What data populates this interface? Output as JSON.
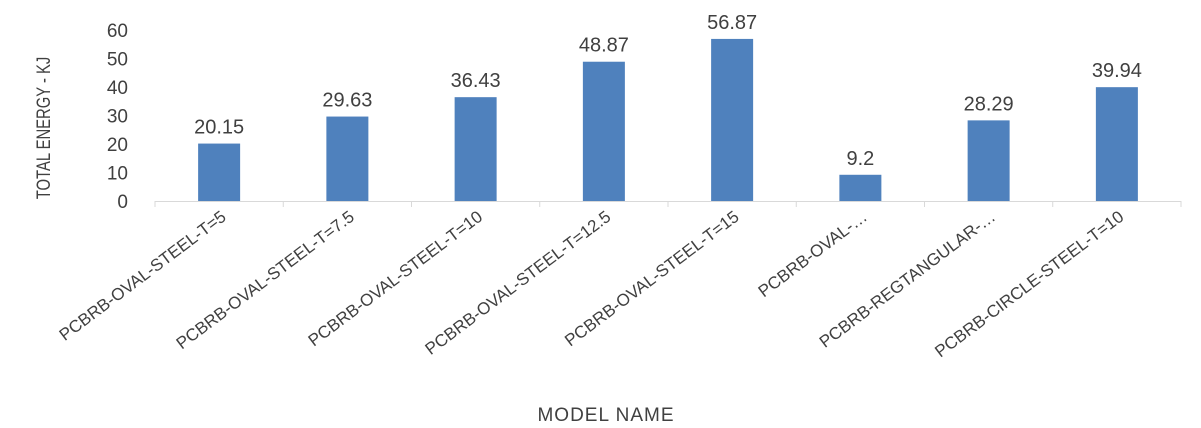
{
  "chart_data": {
    "type": "bar",
    "title": "",
    "xlabel": "MODEL NAME",
    "ylabel": "TOTAL ENERGY - KJ",
    "ylim": [
      0,
      60
    ],
    "yticks": [
      0,
      10,
      20,
      30,
      40,
      50,
      60
    ],
    "grid": false,
    "categories": [
      "PCBRB-OVAL-STEEL-T=5",
      "PCBRB-OVAL-STEEL-T=7.5",
      "PCBRB-OVAL-STEEL-T=10",
      "PCBRB-OVAL-STEEL-T=12.5",
      "PCBRB-OVAL-STEEL-T=15",
      "PCBRB-OVAL-…",
      "PCBRB-REGTANGULAR-…",
      "PCBRB-CIRCLE-STEEL-T=10"
    ],
    "values": [
      20.15,
      29.63,
      36.43,
      48.87,
      56.87,
      9.2,
      28.29,
      39.94
    ],
    "data_labels": [
      "20.15",
      "29.63",
      "36.43",
      "48.87",
      "56.87",
      "9.2",
      "28.29",
      "39.94"
    ],
    "bar_color": "#4F81BD",
    "text_color": "#404040",
    "axis_color": "#D9D9D9"
  }
}
